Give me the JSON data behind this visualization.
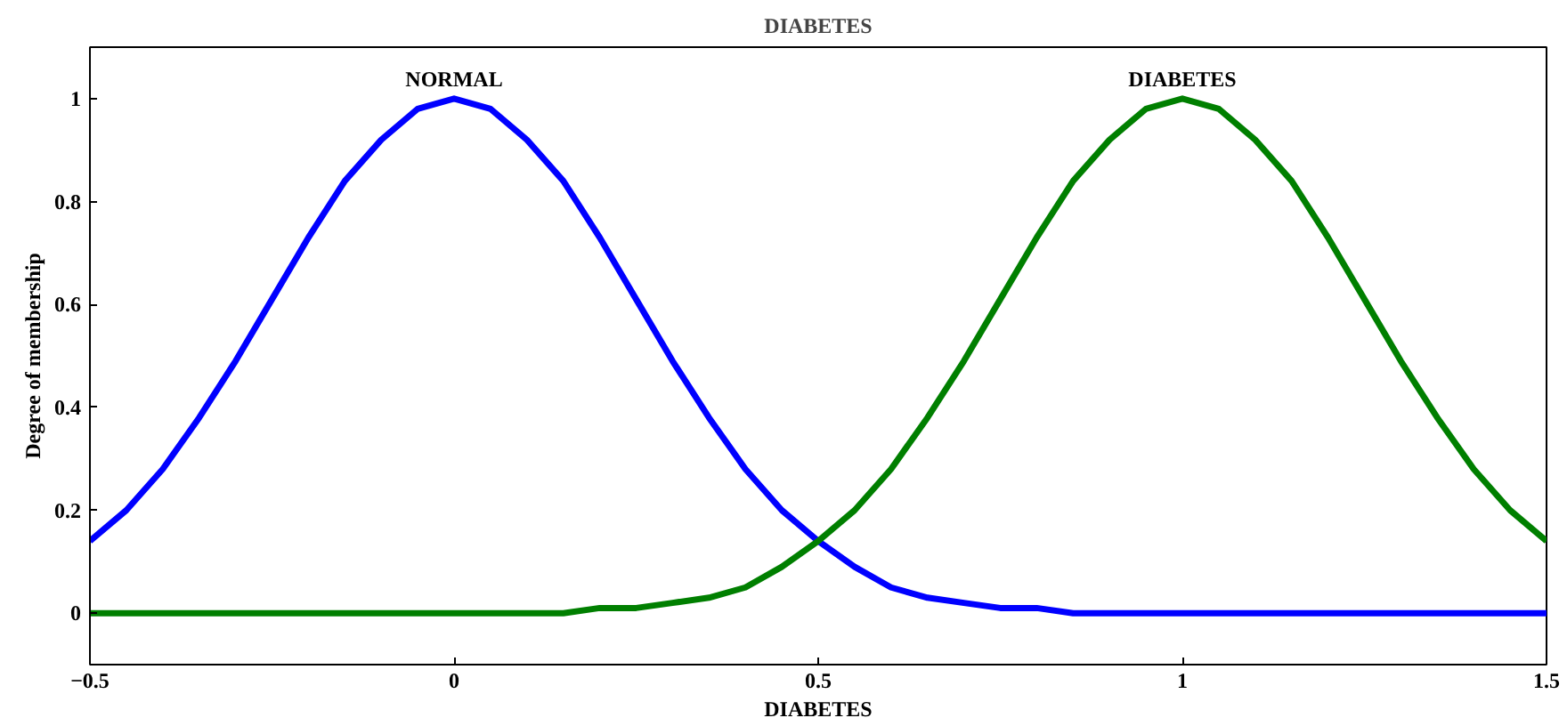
{
  "chart_data": {
    "type": "line",
    "title": "DIABETES",
    "xlabel": "DIABETES",
    "ylabel": "Degree of membership",
    "x": [
      -0.5,
      -0.45,
      -0.4,
      -0.35,
      -0.3,
      -0.25,
      -0.2,
      -0.15,
      -0.1,
      -0.05,
      0,
      0.05,
      0.1,
      0.15,
      0.2,
      0.25,
      0.3,
      0.35,
      0.4,
      0.45,
      0.5,
      0.55,
      0.6,
      0.65,
      0.7,
      0.75,
      0.8,
      0.85,
      0.9,
      0.95,
      1,
      1.05,
      1.1,
      1.15,
      1.2,
      1.25,
      1.3,
      1.35,
      1.4,
      1.45,
      1.5
    ],
    "series": [
      {
        "color": "#0000ff",
        "values": [
          0.14,
          0.2,
          0.28,
          0.38,
          0.49,
          0.61,
          0.73,
          0.84,
          0.92,
          0.98,
          1,
          0.98,
          0.92,
          0.84,
          0.73,
          0.61,
          0.49,
          0.38,
          0.28,
          0.2,
          0.14,
          0.09,
          0.05,
          0.03,
          0.02,
          0.01,
          0.01,
          0,
          0,
          0,
          0,
          0,
          0,
          0,
          0,
          0,
          0,
          0,
          0,
          0,
          0
        ]
      },
      {
        "color": "#007f00",
        "values": [
          0,
          0,
          0,
          0,
          0,
          0,
          0,
          0,
          0,
          0,
          0,
          0,
          0,
          0,
          0.01,
          0.01,
          0.02,
          0.03,
          0.05,
          0.09,
          0.14,
          0.2,
          0.28,
          0.38,
          0.49,
          0.61,
          0.73,
          0.84,
          0.92,
          0.98,
          1,
          0.98,
          0.92,
          0.84,
          0.73,
          0.61,
          0.49,
          0.38,
          0.28,
          0.2,
          0.14
        ]
      }
    ],
    "annotations": [
      {
        "text": "NORMAL",
        "x": 0,
        "y": 1
      },
      {
        "text": "DIABETES",
        "x": 1,
        "y": 1
      }
    ],
    "xlim": [
      -0.5,
      1.5
    ],
    "ylim": [
      -0.1,
      1.1
    ],
    "xticks": [
      -0.5,
      0,
      0.5,
      1,
      1.5
    ],
    "yticks": [
      0,
      0.2,
      0.4,
      0.6,
      0.8,
      1
    ],
    "grid": false,
    "marker": "none",
    "line_style": "solid"
  }
}
